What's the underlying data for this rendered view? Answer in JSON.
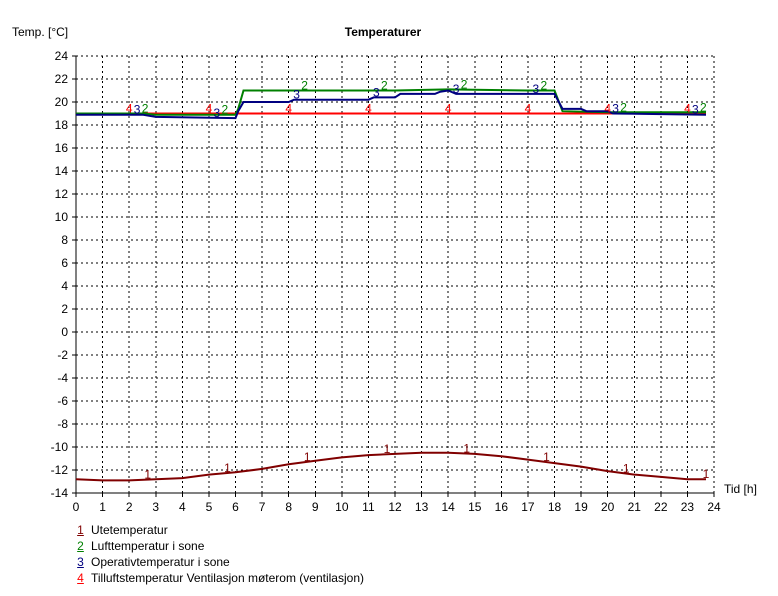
{
  "chart_data": {
    "type": "line",
    "title": "Temperaturer",
    "ylabel": "Temp. [°C]",
    "xlabel": "Tid [h]",
    "xlim": [
      0,
      24
    ],
    "ylim": [
      -14,
      24
    ],
    "xticks": [
      0,
      1,
      2,
      3,
      4,
      5,
      6,
      7,
      8,
      9,
      10,
      11,
      12,
      13,
      14,
      15,
      16,
      17,
      18,
      19,
      20,
      21,
      22,
      23,
      24
    ],
    "yticks": [
      -14,
      -12,
      -10,
      -8,
      -6,
      -4,
      -2,
      0,
      2,
      4,
      6,
      8,
      10,
      12,
      14,
      16,
      18,
      20,
      22,
      24
    ],
    "grid": true,
    "legend_position": "bottom",
    "series": [
      {
        "marker": "1",
        "name": "Utetemperatur",
        "color": "#800000",
        "x": [
          0,
          1,
          2,
          3,
          4,
          5,
          6,
          7,
          8,
          9,
          10,
          11,
          12,
          13,
          14,
          15,
          16,
          17,
          18,
          19,
          20,
          21,
          22,
          23,
          23.7
        ],
        "y": [
          -12.8,
          -12.9,
          -12.9,
          -12.8,
          -12.7,
          -12.4,
          -12.2,
          -11.9,
          -11.5,
          -11.2,
          -10.9,
          -10.7,
          -10.6,
          -10.5,
          -10.5,
          -10.6,
          -10.8,
          -11.1,
          -11.4,
          -11.7,
          -12.1,
          -12.4,
          -12.6,
          -12.8,
          -12.8
        ]
      },
      {
        "marker": "2",
        "name": "Lufttemperatur i sone",
        "color": "#008000",
        "x": [
          0,
          2.5,
          3,
          6,
          6.1,
          6.3,
          9,
          12,
          14,
          17,
          18,
          18.3,
          20,
          23.7
        ],
        "y": [
          19,
          19,
          18.9,
          18.9,
          19.4,
          21,
          21,
          21,
          21.1,
          21,
          21,
          19.2,
          19.1,
          19.1
        ]
      },
      {
        "marker": "3",
        "name": "Operativtemperatur i sone",
        "color": "#000080",
        "x": [
          0,
          2.5,
          3,
          6,
          6.1,
          6.3,
          8,
          8.2,
          11,
          11.2,
          12,
          12.2,
          13.5,
          13.7,
          14,
          14.3,
          18,
          18.3,
          19,
          19.2,
          20,
          20.2,
          23.7
        ],
        "y": [
          18.9,
          18.9,
          18.7,
          18.6,
          19.2,
          20,
          20,
          20.2,
          20.2,
          20.4,
          20.4,
          20.7,
          20.7,
          20.9,
          21,
          20.7,
          20.7,
          19.4,
          19.4,
          19.2,
          19.2,
          19,
          18.9
        ]
      },
      {
        "marker": "4",
        "name": "Tilluftstemperatur Ventilasjon møterom (ventilasjon)",
        "color": "#ff0000",
        "x": [
          0,
          23.7
        ],
        "y": [
          19,
          19
        ]
      }
    ]
  }
}
